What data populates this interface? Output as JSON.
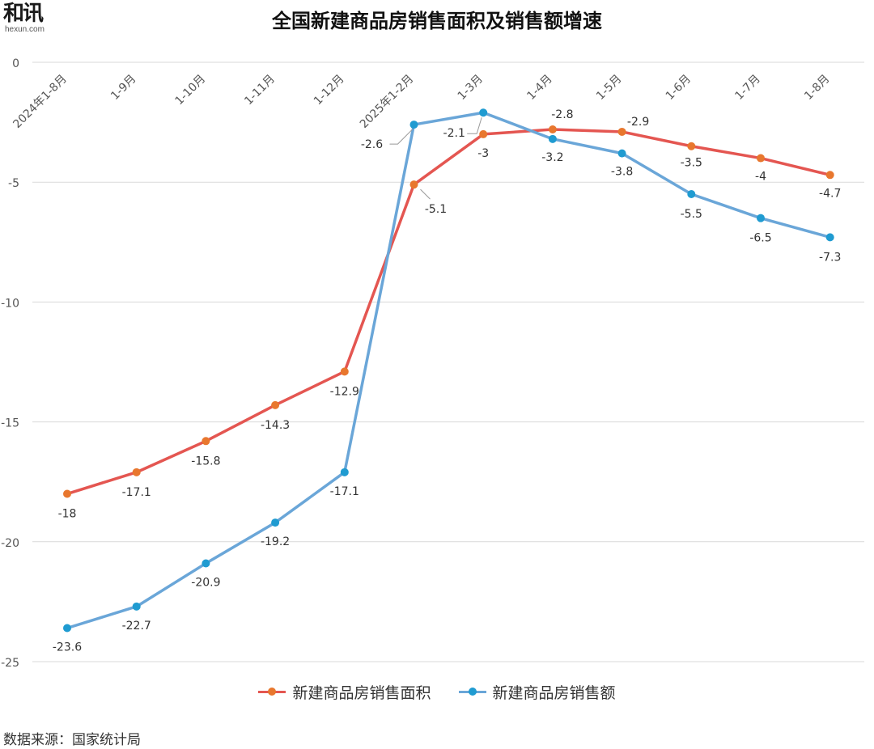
{
  "logo": {
    "main": "和讯",
    "sub": "hexun.com"
  },
  "source": "数据来源：国家统计局",
  "chart_data": {
    "type": "line",
    "title": "全国新建商品房销售面积及销售额增速",
    "categories": [
      "2024年1-8月",
      "1-9月",
      "1-10月",
      "1-11月",
      "1-12月",
      "2025年1-2月",
      "1-3月",
      "1-4月",
      "1-5月",
      "1-6月",
      "1-7月",
      "1-8月"
    ],
    "ylim": [
      -25,
      0
    ],
    "yticks": [
      0,
      -5,
      -10,
      -15,
      -20,
      -25
    ],
    "grid": true,
    "legend_position": "bottom",
    "series": [
      {
        "name": "新建商品房销售面积",
        "color": "#e45651",
        "values": [
          -18,
          -17.1,
          -15.8,
          -14.3,
          -12.9,
          -5.1,
          -3,
          -2.8,
          -2.9,
          -3.5,
          -4,
          -4.7
        ],
        "labels": [
          "-18",
          "-17.1",
          "-15.8",
          "-14.3",
          "-12.9",
          "-5.1",
          "-3",
          "-2.8",
          "-2.9",
          "-3.5",
          "-4",
          "-4.7"
        ]
      },
      {
        "name": "新建商品房销售额",
        "color": "#6aa6d8",
        "values": [
          -23.6,
          -22.7,
          -20.9,
          -19.2,
          -17.1,
          -2.6,
          -2.1,
          -3.2,
          -3.8,
          -5.5,
          -6.5,
          -7.3
        ],
        "labels": [
          "-23.6",
          "-22.7",
          "-20.9",
          "-19.2",
          "-17.1",
          "-2.6",
          "-2.1",
          "-3.2",
          "-3.8",
          "-5.5",
          "-6.5",
          "-7.3"
        ]
      }
    ]
  }
}
